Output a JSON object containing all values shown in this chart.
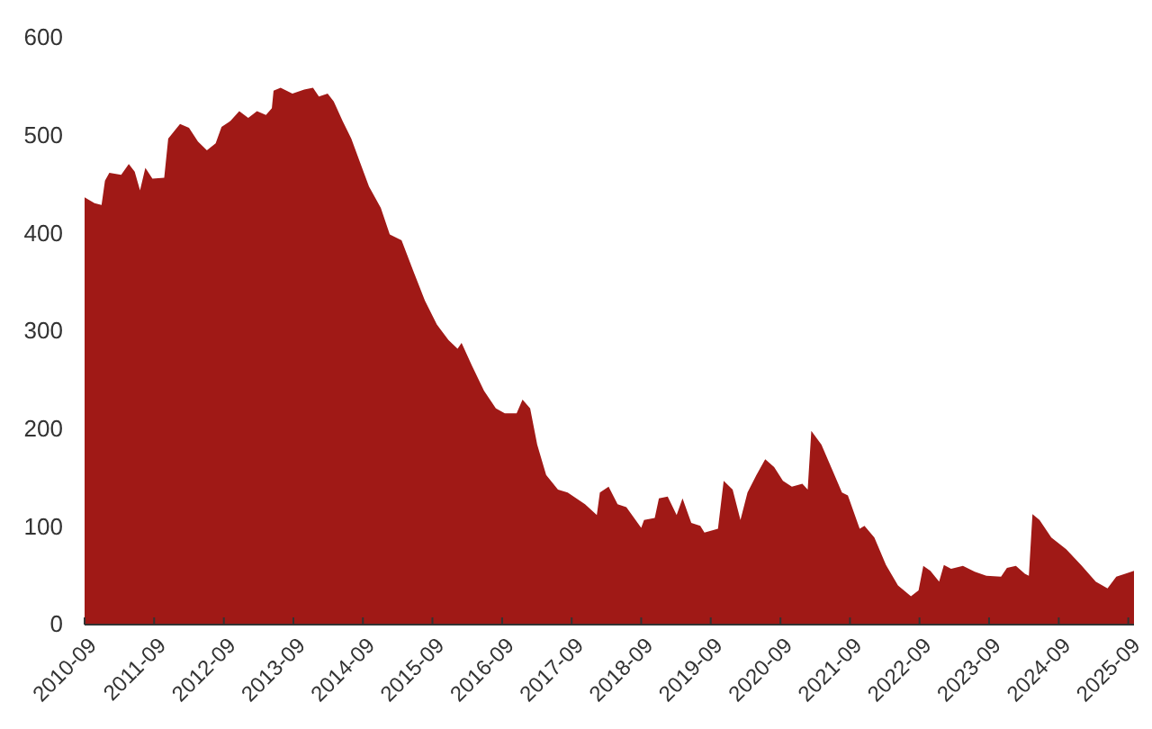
{
  "chart_data": {
    "type": "area",
    "color": "#a01916",
    "x": [
      "2010-09-01",
      "2010-10-23",
      "2010-11-29",
      "2010-12-17",
      "2011-01-09",
      "2011-03-12",
      "2011-04-21",
      "2011-05-22",
      "2011-06-19",
      "2011-07-17",
      "2011-08-23",
      "2011-10-24",
      "2011-11-14",
      "2011-12-21",
      "2012-01-15",
      "2012-03-02",
      "2012-04-18",
      "2012-06-04",
      "2012-07-20",
      "2012-08-20",
      "2012-10-06",
      "2012-11-21",
      "2013-01-07",
      "2013-02-22",
      "2013-04-10",
      "2013-05-11",
      "2013-05-20",
      "2013-06-26",
      "2013-08-27",
      "2013-10-28",
      "2013-12-13",
      "2014-01-13",
      "2014-02-28",
      "2014-04-01",
      "2014-05-17",
      "2014-07-02",
      "2014-08-18",
      "2014-10-03",
      "2014-12-04",
      "2015-01-20",
      "2015-03-23",
      "2015-05-23",
      "2015-07-24",
      "2015-09-24",
      "2015-11-24",
      "2016-01-11",
      "2016-02-01",
      "2016-03-28",
      "2016-05-29",
      "2016-07-30",
      "2016-09-15",
      "2016-11-16",
      "2016-12-17",
      "2017-01-26",
      "2017-03-04",
      "2017-04-20",
      "2017-06-21",
      "2017-08-11",
      "2017-11-10",
      "2018-01-11",
      "2018-01-27",
      "2018-03-14",
      "2018-04-30",
      "2018-06-15",
      "2018-09-01",
      "2018-09-16",
      "2018-11-11",
      "2018-12-03",
      "2019-01-18",
      "2019-03-06",
      "2019-04-06",
      "2019-05-22",
      "2019-07-08",
      "2019-07-30",
      "2019-10-09",
      "2019-11-08",
      "2019-12-25",
      "2020-02-04",
      "2020-03-12",
      "2020-04-28",
      "2020-06-13",
      "2020-07-30",
      "2020-09-14",
      "2020-10-31",
      "2020-12-25",
      "2021-01-22",
      "2021-02-10",
      "2021-04-04",
      "2021-06-05",
      "2021-07-21",
      "2021-08-21",
      "2021-10-22",
      "2021-11-16",
      "2022-01-07",
      "2022-03-09",
      "2022-05-11",
      "2022-07-18",
      "2022-08-27",
      "2022-09-21",
      "2022-10-28",
      "2022-12-13",
      "2023-01-07",
      "2023-02-14",
      "2023-04-17",
      "2023-06-18",
      "2023-08-18",
      "2023-11-03",
      "2023-12-04",
      "2024-01-20",
      "2024-03-07",
      "2024-03-28",
      "2024-04-16",
      "2024-05-23",
      "2024-07-24",
      "2024-10-10",
      "2024-12-27",
      "2025-03-14",
      "2025-05-15",
      "2025-06-30",
      "2025-08-16",
      "2025-10-01"
    ],
    "values": [
      437,
      431,
      429,
      454,
      462,
      460,
      471,
      463,
      444,
      467,
      456,
      457,
      497,
      506,
      512,
      508,
      494,
      485,
      492,
      509,
      515,
      525,
      518,
      525,
      521,
      528,
      546,
      549,
      543,
      547,
      549,
      540,
      543,
      535,
      515,
      497,
      472,
      448,
      426,
      399,
      393,
      362,
      331,
      307,
      291,
      282,
      288,
      264,
      239,
      221,
      216,
      216,
      230,
      221,
      184,
      153,
      138,
      135,
      123,
      112,
      135,
      141,
      123,
      120,
      99,
      107,
      109,
      129,
      131,
      112,
      129,
      104,
      101,
      94,
      98,
      147,
      138,
      107,
      135,
      153,
      169,
      161,
      147,
      141,
      144,
      138,
      198,
      184,
      156,
      135,
      132,
      98,
      101,
      89,
      61,
      40,
      29,
      35,
      60,
      55,
      44,
      61,
      57,
      60,
      54,
      50,
      49,
      58,
      60,
      52,
      50,
      113,
      107,
      89,
      77,
      61,
      44,
      37,
      49,
      52,
      55
    ],
    "xlim": [
      "2010-09-01",
      "2025-10-01"
    ],
    "xticks": [
      "2010-09",
      "2011-09",
      "2012-09",
      "2013-09",
      "2014-09",
      "2015-09",
      "2016-09",
      "2017-09",
      "2018-09",
      "2019-09",
      "2020-09",
      "2021-09",
      "2022-09",
      "2023-09",
      "2024-09",
      "2025-09"
    ],
    "ylim": [
      0,
      600
    ],
    "yticks": [
      0,
      100,
      200,
      300,
      400,
      500,
      600
    ],
    "grid": false
  }
}
